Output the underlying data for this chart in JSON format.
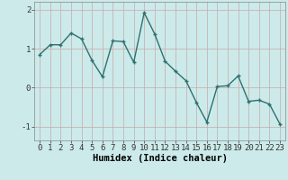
{
  "x": [
    0,
    1,
    2,
    3,
    4,
    5,
    6,
    7,
    8,
    9,
    10,
    11,
    12,
    13,
    14,
    15,
    16,
    17,
    18,
    19,
    20,
    21,
    22,
    23
  ],
  "y": [
    0.85,
    1.1,
    1.1,
    1.4,
    1.25,
    0.7,
    0.28,
    1.2,
    1.18,
    0.65,
    1.92,
    1.38,
    0.68,
    0.42,
    0.18,
    -0.38,
    -0.88,
    0.03,
    0.05,
    0.3,
    -0.35,
    -0.32,
    -0.42,
    -0.93
  ],
  "line_color": "#2e7070",
  "marker": "+",
  "marker_size": 4,
  "bg_color": "#cceaea",
  "grid_color": "#b0d8d8",
  "xlabel": "Humidex (Indice chaleur)",
  "xlim": [
    -0.5,
    23.5
  ],
  "ylim": [
    -1.35,
    2.2
  ],
  "yticks": [
    -1,
    0,
    1,
    2
  ],
  "xticks": [
    0,
    1,
    2,
    3,
    4,
    5,
    6,
    7,
    8,
    9,
    10,
    11,
    12,
    13,
    14,
    15,
    16,
    17,
    18,
    19,
    20,
    21,
    22,
    23
  ],
  "tick_fontsize": 6.5,
  "xlabel_fontsize": 7.5,
  "linewidth": 1.0,
  "marker_size_star": 3.5
}
